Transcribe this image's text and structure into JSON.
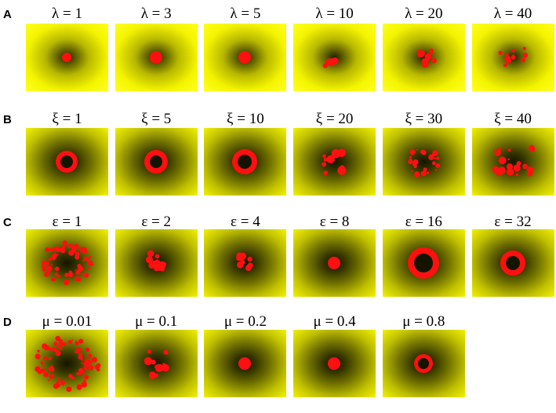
{
  "rows": [
    {
      "label": "A",
      "panels": [
        {
          "title": "λ = 1"
        },
        {
          "title": "λ = 3"
        },
        {
          "title": "λ = 5"
        },
        {
          "title": "λ = 10"
        },
        {
          "title": "λ = 20"
        },
        {
          "title": "λ = 40"
        }
      ]
    },
    {
      "label": "B",
      "panels": [
        {
          "title": "ξ = 1"
        },
        {
          "title": "ξ = 5"
        },
        {
          "title": "ξ = 10"
        },
        {
          "title": "ξ = 20"
        },
        {
          "title": "ξ = 30"
        },
        {
          "title": "ξ = 40"
        }
      ]
    },
    {
      "label": "C",
      "panels": [
        {
          "title": "ε = 1"
        },
        {
          "title": "ε = 2"
        },
        {
          "title": "ε = 4"
        },
        {
          "title": "ε = 8"
        },
        {
          "title": "ε = 16"
        },
        {
          "title": "ε = 32"
        }
      ]
    },
    {
      "label": "D",
      "panels": [
        {
          "title": "μ = 0.01"
        },
        {
          "title": "μ = 0.1"
        },
        {
          "title": "μ = 0.2"
        },
        {
          "title": "μ = 0.4"
        },
        {
          "title": "μ = 0.8"
        }
      ]
    }
  ]
}
